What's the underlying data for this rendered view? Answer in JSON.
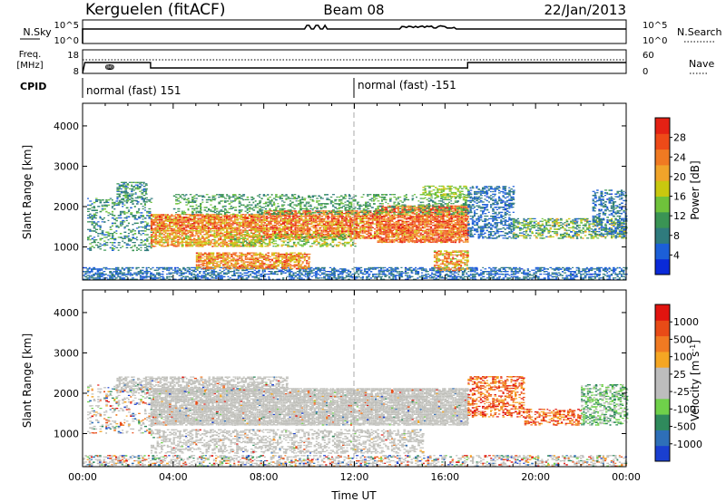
{
  "header": {
    "station": "Kerguelen (fitACF)",
    "beam": "Beam 08",
    "date": "22/Jan/2013"
  },
  "nsky_panel": {
    "left_label": "N.Sky",
    "left_ticks": [
      "10^5",
      "10^0"
    ],
    "right_ticks": [
      "10^5",
      "10^0"
    ],
    "right_label": "N.Search"
  },
  "freq_panel": {
    "left_label_line1": "Freq.",
    "left_label_line2": "[MHz]",
    "left_ticks": [
      "18",
      "8"
    ],
    "right_ticks": [
      "60",
      "0"
    ],
    "right_label": "Nave",
    "frequency_mhz": [
      {
        "t": 0.0,
        "f": 8
      },
      {
        "t": 0.1,
        "f": 14
      },
      {
        "t": 3.0,
        "f": 14
      },
      {
        "t": 3.0,
        "f": 11
      },
      {
        "t": 17.0,
        "f": 11
      },
      {
        "t": 17.0,
        "f": 14
      },
      {
        "t": 24.0,
        "f": 14
      }
    ]
  },
  "cpid": {
    "label": "CPID",
    "segments": [
      {
        "text": "normal (fast) 151",
        "start_hour": 0
      },
      {
        "text": "normal (fast) -151",
        "start_hour": 12
      }
    ]
  },
  "chart_data": [
    {
      "type": "heatmap",
      "title": "",
      "ylabel": "Slant Range [km]",
      "xlabel": "",
      "xlim_hours": [
        0,
        24
      ],
      "ylim_km": [
        180,
        4560
      ],
      "yticks": [
        "1000",
        "2000",
        "3000",
        "4000"
      ],
      "colorbar": {
        "label": "Power [dB]",
        "ticks": [
          "4",
          "8",
          "12",
          "16",
          "20",
          "24",
          "28"
        ],
        "range": [
          0,
          31
        ],
        "colors": [
          "#0a2ad8",
          "#1c5fd8",
          "#2f7b7d",
          "#3a9454",
          "#6fc23b",
          "#c9c80f",
          "#f0a42a",
          "#f07a22",
          "#ee4a18",
          "#e42114"
        ]
      },
      "echo_bands": [
        {
          "t0": 0.0,
          "t1": 24.0,
          "r0": 180,
          "r1": 500,
          "v0": 3,
          "v1": 9,
          "d": 0.55
        },
        {
          "t0": 0.2,
          "t1": 3.0,
          "r0": 900,
          "r1": 2200,
          "v0": 4,
          "v1": 14,
          "d": 0.3
        },
        {
          "t0": 1.5,
          "t1": 2.8,
          "r0": 2100,
          "r1": 2600,
          "v0": 5,
          "v1": 14,
          "d": 0.55
        },
        {
          "t0": 3.0,
          "t1": 8.0,
          "r0": 1400,
          "r1": 1800,
          "v0": 16,
          "v1": 30,
          "d": 0.85
        },
        {
          "t0": 3.0,
          "t1": 8.0,
          "r0": 1000,
          "r1": 1400,
          "v0": 14,
          "v1": 28,
          "d": 0.7
        },
        {
          "t0": 5.0,
          "t1": 10.0,
          "r0": 450,
          "r1": 850,
          "v0": 16,
          "v1": 29,
          "d": 0.75
        },
        {
          "t0": 8.0,
          "t1": 13.0,
          "r0": 1200,
          "r1": 1900,
          "v0": 16,
          "v1": 31,
          "d": 0.8
        },
        {
          "t0": 13.0,
          "t1": 17.0,
          "r0": 1100,
          "r1": 2000,
          "v0": 18,
          "v1": 31,
          "d": 0.85
        },
        {
          "t0": 6.5,
          "t1": 12.0,
          "r0": 1000,
          "r1": 1300,
          "v0": 10,
          "v1": 20,
          "d": 0.45
        },
        {
          "t0": 15.5,
          "t1": 17.0,
          "r0": 400,
          "r1": 900,
          "v0": 14,
          "v1": 28,
          "d": 0.6
        },
        {
          "t0": 4.0,
          "t1": 17.0,
          "r0": 1800,
          "r1": 2300,
          "v0": 8,
          "v1": 14,
          "d": 0.35
        },
        {
          "t0": 15.0,
          "t1": 17.0,
          "r0": 2200,
          "r1": 2500,
          "v0": 12,
          "v1": 18,
          "d": 0.45
        },
        {
          "t0": 17.0,
          "t1": 19.0,
          "r0": 1200,
          "r1": 2500,
          "v0": 3,
          "v1": 9,
          "d": 0.45
        },
        {
          "t0": 19.0,
          "t1": 24.0,
          "r0": 1200,
          "r1": 1700,
          "v0": 5,
          "v1": 20,
          "d": 0.5
        },
        {
          "t0": 22.5,
          "t1": 24.0,
          "r0": 1300,
          "r1": 2400,
          "v0": 3,
          "v1": 10,
          "d": 0.45
        }
      ]
    },
    {
      "type": "heatmap",
      "title": "",
      "ylabel": "Slant Range [km]",
      "xlabel": "Time UT",
      "xlim_hours": [
        0,
        24
      ],
      "ylim_km": [
        180,
        4560
      ],
      "xticks": [
        "00:00",
        "04:00",
        "08:00",
        "12:00",
        "16:00",
        "20:00",
        "00:00"
      ],
      "yticks": [
        "1000",
        "2000",
        "3000",
        "4000"
      ],
      "colorbar": {
        "label": "Velocity [m s-1]",
        "ticks": [
          "1000",
          "500",
          "100",
          "25",
          "-25",
          "-100",
          "-500",
          "-1000"
        ],
        "colors": [
          "#1a3fd0",
          "#2e6fb8",
          "#2f8a5c",
          "#6fd04a",
          "#bdbdbd",
          "#bdbdbd",
          "#f5a623",
          "#f07a22",
          "#e84b17",
          "#e1140f"
        ]
      },
      "ground_scatter_color": "#c0c0bb",
      "echo_bands": [
        {
          "t0": 3.0,
          "t1": 17.0,
          "r0": 1200,
          "r1": 2100,
          "kind": "ground",
          "d": 0.9
        },
        {
          "t0": 1.5,
          "t1": 9.0,
          "r0": 2000,
          "r1": 2400,
          "kind": "ground",
          "d": 0.6
        },
        {
          "t0": 3.0,
          "t1": 15.0,
          "r0": 500,
          "r1": 1100,
          "kind": "ground",
          "d": 0.45
        },
        {
          "t0": 0.0,
          "t1": 24.0,
          "r0": 180,
          "r1": 450,
          "kind": "mixed",
          "d": 0.45
        },
        {
          "t0": 0.2,
          "t1": 3.0,
          "r0": 1000,
          "r1": 2200,
          "kind": "mixed",
          "d": 0.25
        },
        {
          "t0": 17.0,
          "t1": 19.5,
          "r0": 1400,
          "r1": 2400,
          "kind": "iono_neg",
          "d": 0.45
        },
        {
          "t0": 19.5,
          "t1": 22.0,
          "r0": 1200,
          "r1": 1600,
          "kind": "iono_neg",
          "d": 0.45
        },
        {
          "t0": 22.0,
          "t1": 24.0,
          "r0": 1200,
          "r1": 2200,
          "kind": "iono_pos",
          "d": 0.5
        }
      ]
    }
  ]
}
